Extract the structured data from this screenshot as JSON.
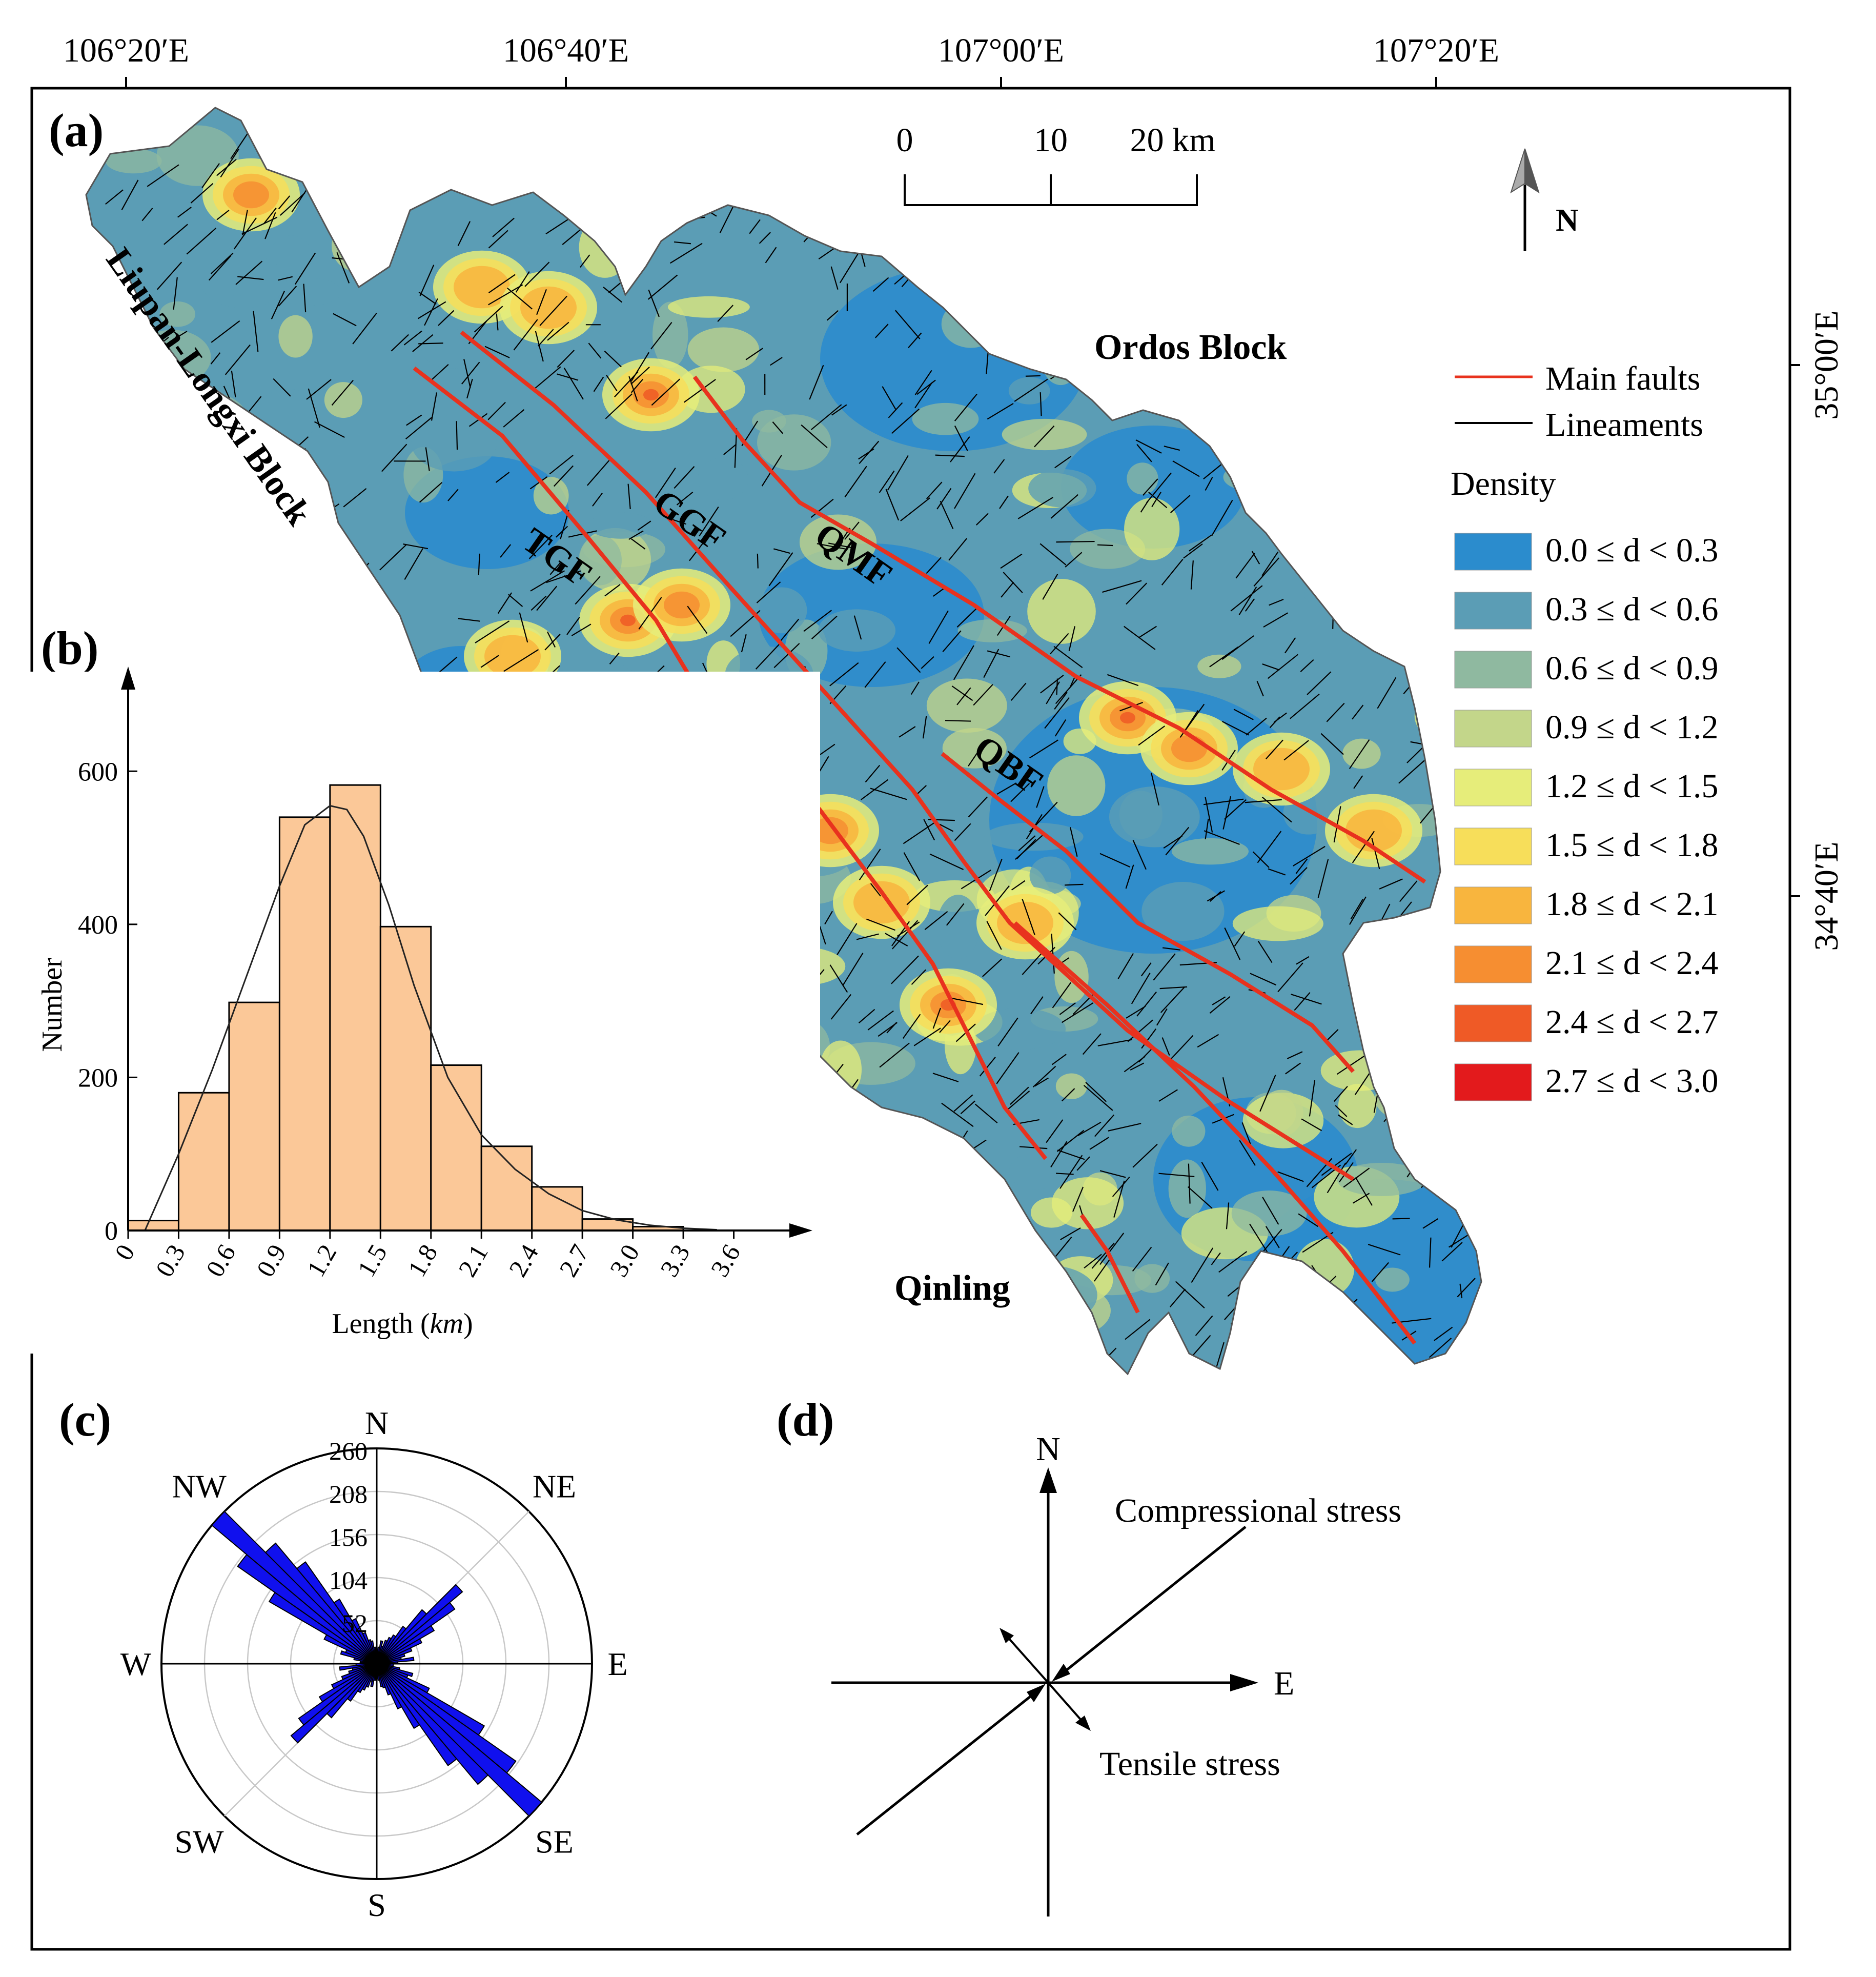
{
  "panel_labels": {
    "a": "(a)",
    "b": "(b)",
    "c": "(c)",
    "d": "(d)"
  },
  "map": {
    "lon_ticks": [
      "106°20′E",
      "106°40′E",
      "107°00′E",
      "107°20′E"
    ],
    "lat_ticks": [
      "35°00′E",
      "34°40′E"
    ],
    "scale_bar": {
      "labels": [
        "0",
        "10",
        "20 km"
      ]
    },
    "north_arrow_label": "N",
    "region_labels": {
      "ordos": "Ordos Block",
      "liupan": "Liupan-Longxi Block",
      "qinling": "Qinling"
    },
    "fault_labels": {
      "tgf": "TGF",
      "ggf": "GGF",
      "qmf": "QMF",
      "qbf": "QBF"
    },
    "colors": {
      "fault": "#e8321e",
      "lineament": "#000000",
      "outline": "#555555"
    },
    "legend": {
      "main_faults": "Main faults",
      "lineaments": "Lineaments",
      "density_title": "Density",
      "classes": [
        {
          "label": "0.0 ≤ d < 0.3",
          "color": "#2b8ccd"
        },
        {
          "label": "0.3 ≤ d < 0.6",
          "color": "#5b9db5"
        },
        {
          "label": "0.6 ≤ d < 0.9",
          "color": "#8fb9a0"
        },
        {
          "label": "0.9 ≤ d < 1.2",
          "color": "#c3d68a"
        },
        {
          "label": "1.2 ≤ d < 1.5",
          "color": "#e6ed7a"
        },
        {
          "label": "1.5 ≤ d < 1.8",
          "color": "#f7de5a"
        },
        {
          "label": "1.8 ≤ d < 2.1",
          "color": "#f8b53e"
        },
        {
          "label": "2.1 ≤ d < 2.4",
          "color": "#f68e31"
        },
        {
          "label": "2.4 ≤ d < 2.7",
          "color": "#ef5a26"
        },
        {
          "label": "2.7 ≤ d < 3.0",
          "color": "#e31a1c"
        }
      ]
    }
  },
  "chart_data": [
    {
      "type": "bar",
      "panel": "b",
      "xlabel": "Length (km)",
      "ylabel": "Number",
      "bin_edges": [
        0,
        0.3,
        0.6,
        0.9,
        1.2,
        1.5,
        1.8,
        2.1,
        2.4,
        2.7,
        3.0,
        3.3
      ],
      "x_tick_labels": [
        "0",
        "0.3",
        "0.6",
        "0.9",
        "1.2",
        "1.5",
        "1.8",
        "2.1",
        "2.4",
        "2.7",
        "3.0",
        "3.3",
        "3.6"
      ],
      "values": [
        13,
        180,
        298,
        540,
        582,
        397,
        216,
        110,
        57,
        15,
        5
      ],
      "y_ticks": [
        0,
        200,
        400,
        600
      ],
      "ylim": [
        0,
        700
      ],
      "xlim": [
        0,
        3.9
      ],
      "bar_color": "#fbc898",
      "fit_curve": {
        "x": [
          0.1,
          0.3,
          0.5,
          0.7,
          0.9,
          1.05,
          1.2,
          1.3,
          1.4,
          1.55,
          1.7,
          1.9,
          2.1,
          2.3,
          2.5,
          2.7,
          2.9,
          3.1,
          3.3,
          3.5
        ],
        "y": [
          0,
          100,
          210,
          330,
          450,
          530,
          555,
          550,
          515,
          425,
          320,
          200,
          125,
          80,
          48,
          26,
          14,
          7,
          3,
          1
        ]
      }
    },
    {
      "type": "rose",
      "panel": "c",
      "ring_labels": [
        "52",
        "104",
        "156",
        "208",
        "260"
      ],
      "rmax": 260,
      "direction_labels": [
        "N",
        "NE",
        "E",
        "SE",
        "S",
        "SW",
        "W",
        "NW"
      ],
      "bar_color": "#1010ee",
      "bin_width_deg": 5,
      "bins": [
        {
          "az": 0,
          "v": 15
        },
        {
          "az": 5,
          "v": 20
        },
        {
          "az": 10,
          "v": 28
        },
        {
          "az": 15,
          "v": 22
        },
        {
          "az": 20,
          "v": 30
        },
        {
          "az": 25,
          "v": 35
        },
        {
          "az": 30,
          "v": 40
        },
        {
          "az": 35,
          "v": 55
        },
        {
          "az": 40,
          "v": 85
        },
        {
          "az": 45,
          "v": 135
        },
        {
          "az": 50,
          "v": 115
        },
        {
          "az": 55,
          "v": 80
        },
        {
          "az": 60,
          "v": 60
        },
        {
          "az": 65,
          "v": 45
        },
        {
          "az": 70,
          "v": 35
        },
        {
          "az": 75,
          "v": 30
        },
        {
          "az": 80,
          "v": 45
        },
        {
          "az": 85,
          "v": 25
        },
        {
          "az": 90,
          "v": 20
        },
        {
          "az": 95,
          "v": 20
        },
        {
          "az": 100,
          "v": 28
        },
        {
          "az": 105,
          "v": 45
        },
        {
          "az": 110,
          "v": 40
        },
        {
          "az": 115,
          "v": 70
        },
        {
          "az": 120,
          "v": 150
        },
        {
          "az": 125,
          "v": 205
        },
        {
          "az": 130,
          "v": 260
        },
        {
          "az": 135,
          "v": 190
        },
        {
          "az": 140,
          "v": 150
        },
        {
          "az": 145,
          "v": 90
        },
        {
          "az": 150,
          "v": 60
        },
        {
          "az": 155,
          "v": 40
        },
        {
          "az": 160,
          "v": 30
        },
        {
          "az": 165,
          "v": 28
        },
        {
          "az": 170,
          "v": 20
        },
        {
          "az": 175,
          "v": 15
        }
      ]
    }
  ],
  "stress_diagram": {
    "north_label": "N",
    "east_label": "E",
    "compressional_label": "Compressional stress",
    "tensile_label": "Tensile stress"
  }
}
